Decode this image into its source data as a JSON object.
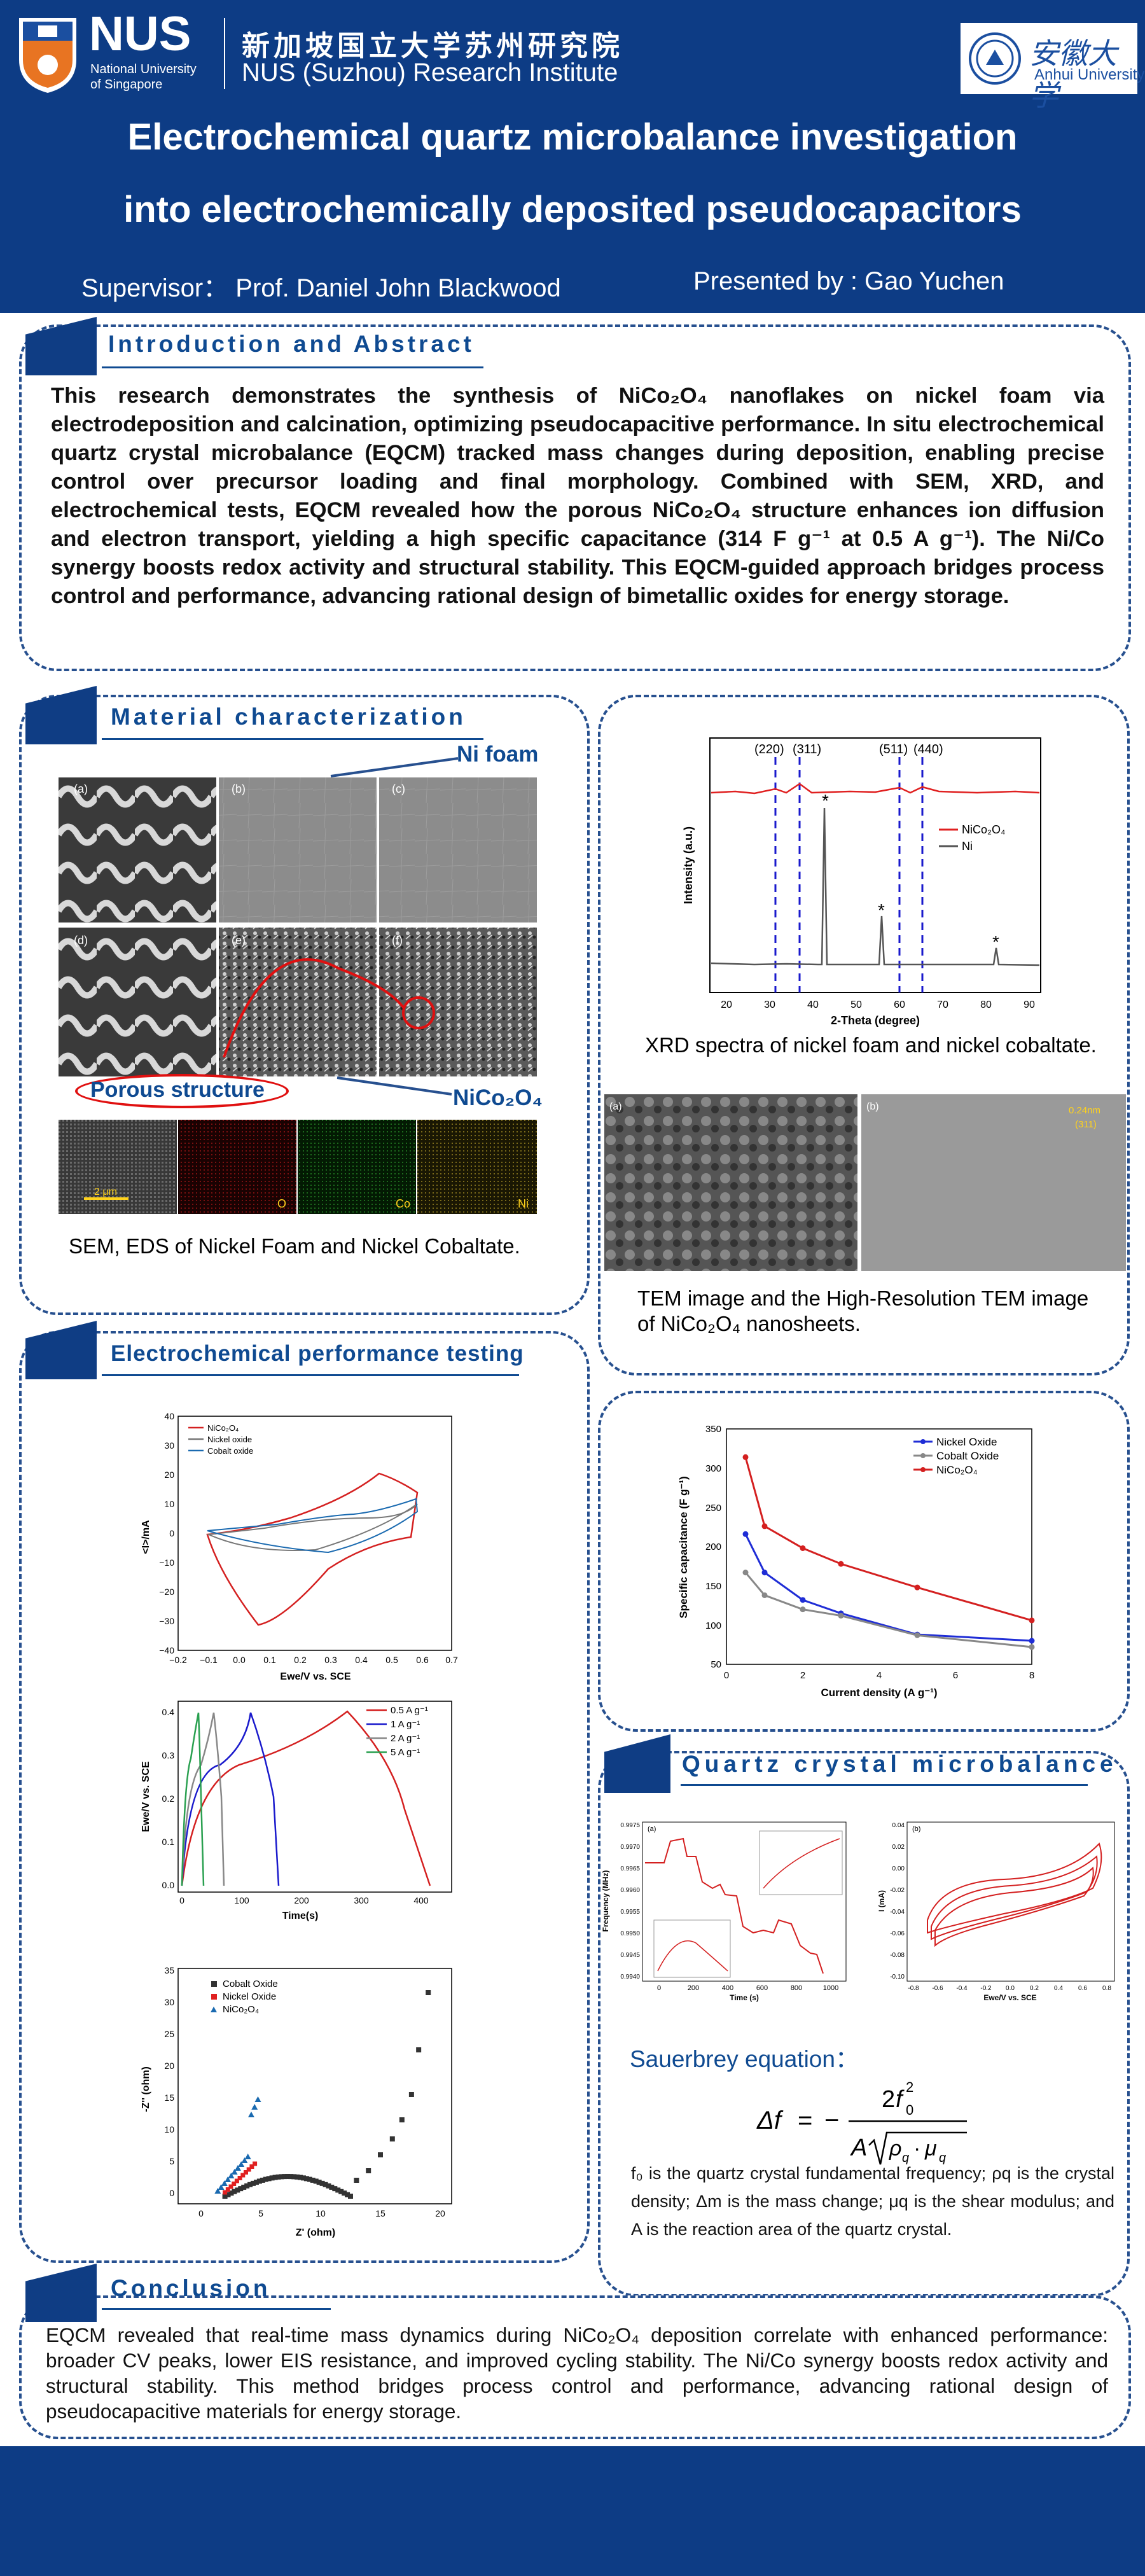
{
  "header": {
    "nus_name": "NUS",
    "nus_sub1": "National University",
    "nus_sub2": "of Singapore",
    "inst_cn": "新加坡国立大学苏州研究院",
    "inst_en": "NUS (Suzhou) Research Institute",
    "ahu_cn": "安徽大学",
    "ahu_en": "Anhui University",
    "title_line1": "Electrochemical quartz microbalance investigation",
    "title_line2": "into electrochemically deposited pseudocapacitors",
    "supervisor": "Supervisor： Prof. Daniel John Blackwood",
    "presenter": "Presented by : Gao Yuchen"
  },
  "intro": {
    "title": "Introduction and Abstract",
    "body": "This research demonstrates the synthesis of NiCo₂O₄ nanoflakes on nickel foam via electrodeposition and calcination, optimizing pseudocapacitive performance. In situ electrochemical quartz crystal microbalance (EQCM) tracked mass changes during deposition, enabling precise control over precursor loading and final morphology. Combined with SEM, XRD, and electrochemical tests, EQCM revealed how the porous NiCo₂O₄ structure enhances ion diffusion and electron transport, yielding a high specific capacitance (314 F g⁻¹ at 0.5 A g⁻¹). The Ni/Co synergy boosts redox activity and structural stability. This EQCM-guided approach bridges process control and performance, advancing rational design of bimetallic oxides for energy storage."
  },
  "material": {
    "title": "Material characterization",
    "ni_foam_label": "Ni foam",
    "porous_label": "Porous structure",
    "nico_label": "NiCo₂O₄",
    "panel_labels": [
      "(a)",
      "(b)",
      "(c)",
      "(d)",
      "(e)",
      "(f)"
    ],
    "eds_labels": [
      "O",
      "Co",
      "Ni"
    ],
    "scale": "2 μm",
    "caption": "SEM, EDS of Nickel Foam and Nickel Cobaltate."
  },
  "xrd": {
    "caption": "XRD spectra of nickel foam and nickel cobaltate.",
    "peaks": [
      "(220)",
      "(311)",
      "(511)",
      "(440)"
    ],
    "legend": [
      "NiCo₂O₄",
      "Ni"
    ],
    "xlabel": "2-Theta (degree)",
    "ylabel": "Intensity (a.u.)",
    "xticks": [
      "20",
      "30",
      "40",
      "50",
      "60",
      "70",
      "80",
      "90"
    ]
  },
  "tem": {
    "labels": [
      "(a)",
      "(b)"
    ],
    "lattice": "0.24nm",
    "plane": "(311)",
    "caption1": "TEM image and the High-Resolution TEM image",
    "caption2": "of NiCo₂O₄ nanosheets."
  },
  "electro": {
    "title": "Electrochemical performance testing",
    "cv": {
      "legend": [
        "NiCo₂O₄",
        "Nickel oxide",
        "Cobalt oxide"
      ],
      "xlabel": "Ewe/V vs. SCE",
      "ylabel": "<I>/mA",
      "xticks": [
        "−0.2",
        "−0.1",
        "0.0",
        "0.1",
        "0.2",
        "0.3",
        "0.4",
        "0.5",
        "0.6",
        "0.7"
      ],
      "yticks": [
        "40",
        "30",
        "20",
        "10",
        "0",
        "−10",
        "−20",
        "−30",
        "−40"
      ]
    },
    "gcd": {
      "legend": [
        "0.5 A g⁻¹",
        "1  A g⁻¹",
        "2  A g⁻¹",
        "5  A g⁻¹"
      ],
      "xlabel": "Time(s)",
      "ylabel": "Ewe/V vs. SCE",
      "xticks": [
        "0",
        "100",
        "200",
        "300",
        "400"
      ],
      "yticks": [
        "0.4",
        "0.3",
        "0.2",
        "0.1",
        "0.0"
      ]
    },
    "eis": {
      "legend": [
        "Cobalt Oxide",
        "Nickel Oxide",
        "NiCo₂O₄"
      ],
      "xlabel": "Z' (ohm)",
      "ylabel": "-Z'' (ohm)",
      "xticks": [
        "0",
        "5",
        "10",
        "15",
        "20"
      ],
      "yticks": [
        "35",
        "30",
        "25",
        "20",
        "15",
        "10",
        "5",
        "0"
      ]
    }
  },
  "capacitance": {
    "legend": [
      "Nickel Oxide",
      "Cobalt Oxide",
      "NiCo₂O₄"
    ],
    "xlabel": "Current density (A g⁻¹)",
    "ylabel": "Specific capacitance (F g⁻¹)",
    "xticks": [
      "0",
      "2",
      "4",
      "6",
      "8"
    ],
    "yticks": [
      "350",
      "300",
      "250",
      "200",
      "150",
      "100",
      "50"
    ]
  },
  "qcm": {
    "title": "Quartz crystal microbalance",
    "freq_ylabel": "Frequency (MHz)",
    "freq_xlabel": "Time (s)",
    "freq_yticks": [
      "0.9975",
      "0.9970",
      "0.9965",
      "0.9960",
      "0.9955",
      "0.9950",
      "0.9945",
      "0.9940"
    ],
    "freq_xticks": [
      "0",
      "200",
      "400",
      "600",
      "800",
      "1000"
    ],
    "cv_ylabel": "I (mA)",
    "cv_xlabel": "Ewe/V vs. SCE",
    "cv_yticks": [
      "0.04",
      "0.02",
      "0.00",
      "-0.02",
      "-0.04",
      "-0.06",
      "-0.08",
      "-0.10"
    ],
    "cv_xticks": [
      "-0.8",
      "-0.6",
      "-0.4",
      "-0.2",
      "0.0",
      "0.2",
      "0.4",
      "0.6",
      "0.8"
    ],
    "panel_a": "(a)",
    "panel_b": "(b)",
    "eq_title": "Sauerbrey equation：",
    "desc": "f₀ is the quartz crystal fundamental frequency; ρq is the crystal density; Δm is the mass change; μq is the shear modulus; and A is the reaction area of the quartz crystal."
  },
  "conclusion": {
    "title": "Conclusion",
    "body": "EQCM revealed that real-time mass dynamics during NiCo₂O₄ deposition correlate with enhanced performance: broader CV peaks, lower EIS resistance, and improved cycling stability. The Ni/Co synergy boosts redox activity and structural stability. This method bridges process control and performance, advancing rational design of pseudocapacitive materials for energy storage."
  },
  "chart_data": [
    {
      "type": "line",
      "ylabel": "-Z'' (ohm)",
      "xlabel": "Z' (ohm)",
      "series": [
        {
          "name": "Cobalt Oxide"
        },
        {
          "name": "Nickel Oxide"
        },
        {
          "name": "NiCo₂O₄"
        }
      ]
    },
    {
      "type": "line",
      "xlabel": "Current density (A g⁻¹)",
      "ylabel": "Specific capacitance (F g⁻¹)",
      "x": [
        0.5,
        1,
        2,
        3,
        5,
        8
      ],
      "ylim": [
        50,
        350
      ],
      "xlim": [
        0,
        8
      ],
      "series": [
        {
          "name": "Nickel Oxide",
          "values": [
            216,
            167,
            132,
            115,
            88,
            80
          ],
          "color": "#1f2dd6"
        },
        {
          "name": "Cobalt Oxide",
          "values": [
            167,
            138,
            120,
            112,
            87,
            72
          ],
          "color": "#888888"
        },
        {
          "name": "NiCo₂O₄",
          "values": [
            314,
            226,
            198,
            178,
            148,
            106
          ],
          "color": "#d42020"
        }
      ]
    }
  ],
  "colors": {
    "navy": "#0d3c85",
    "accent": "#0f4a91"
  }
}
